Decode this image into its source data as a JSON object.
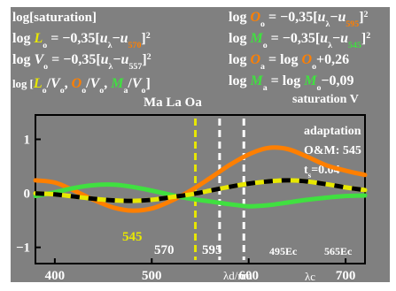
{
  "colors": {
    "panel": "#808080",
    "frame": "#000000",
    "text": "#ffffff",
    "orange": "#ff7f00",
    "green": "#40e040",
    "yellow": "#e8e800",
    "black": "#000000",
    "tick_text": "#ffffff",
    "left_strip": "#ffffff"
  },
  "header": {
    "left": [
      {
        "segments": [
          {
            "t": "log[saturation]",
            "c": "text"
          }
        ]
      },
      {
        "segments": [
          {
            "t": "log ",
            "c": "text"
          },
          {
            "t": "L",
            "c": "yellow",
            "i": true
          },
          {
            "t": "o",
            "c": "text",
            "sub": true
          },
          {
            "t": " = −0,35[",
            "c": "text"
          },
          {
            "t": "u",
            "c": "text",
            "i": true
          },
          {
            "t": "λ",
            "c": "text",
            "sub": true
          },
          {
            "t": "−",
            "c": "text"
          },
          {
            "t": "u",
            "c": "text",
            "i": true
          },
          {
            "t": "570",
            "c": "orange",
            "sub": true
          },
          {
            "t": "]",
            "c": "text"
          },
          {
            "t": "2",
            "c": "text",
            "sup": true
          }
        ]
      },
      {
        "segments": [
          {
            "t": "log ",
            "c": "text"
          },
          {
            "t": "V",
            "c": "text",
            "i": true
          },
          {
            "t": "o",
            "c": "text",
            "sub": true
          },
          {
            "t": " = −0,35[",
            "c": "text"
          },
          {
            "t": "u",
            "c": "text",
            "i": true
          },
          {
            "t": "λ",
            "c": "text",
            "sub": true
          },
          {
            "t": "−",
            "c": "text"
          },
          {
            "t": "u",
            "c": "text",
            "i": true
          },
          {
            "t": "557",
            "c": "text",
            "sub": true
          },
          {
            "t": "]",
            "c": "text"
          },
          {
            "t": "2",
            "c": "text",
            "sup": true
          }
        ]
      },
      {
        "segments": [
          {
            "t": "log [",
            "c": "text",
            "small": true
          },
          {
            "t": "L",
            "c": "yellow",
            "i": true
          },
          {
            "t": "o",
            "c": "text",
            "sub": true
          },
          {
            "t": "/",
            "c": "text"
          },
          {
            "t": "V",
            "c": "text",
            "i": true
          },
          {
            "t": "o",
            "c": "text",
            "sub": true
          },
          {
            "t": ", ",
            "c": "text"
          },
          {
            "t": "O",
            "c": "orange",
            "i": true
          },
          {
            "t": "o",
            "c": "text",
            "sub": true
          },
          {
            "t": "/",
            "c": "text"
          },
          {
            "t": "V",
            "c": "text",
            "i": true
          },
          {
            "t": "o",
            "c": "text",
            "sub": true
          },
          {
            "t": ", ",
            "c": "text"
          },
          {
            "t": "M",
            "c": "green",
            "i": true
          },
          {
            "t": "a",
            "c": "text",
            "sub": true
          },
          {
            "t": "/",
            "c": "text"
          },
          {
            "t": "V",
            "c": "text",
            "i": true
          },
          {
            "t": "o",
            "c": "text",
            "sub": true
          },
          {
            "t": "]",
            "c": "text"
          }
        ]
      }
    ],
    "right": [
      {
        "segments": [
          {
            "t": "log ",
            "c": "text"
          },
          {
            "t": "O",
            "c": "orange",
            "i": true
          },
          {
            "t": "o",
            "c": "text",
            "sub": true
          },
          {
            "t": " = −0,35[",
            "c": "text"
          },
          {
            "t": "u",
            "c": "text",
            "i": true
          },
          {
            "t": "λ",
            "c": "text",
            "sub": true
          },
          {
            "t": "−",
            "c": "text"
          },
          {
            "t": "u",
            "c": "text",
            "i": true
          },
          {
            "t": "595",
            "c": "orange",
            "sub": true
          },
          {
            "t": "]",
            "c": "text"
          },
          {
            "t": "2",
            "c": "text",
            "sup": true
          }
        ]
      },
      {
        "segments": [
          {
            "t": "log ",
            "c": "text"
          },
          {
            "t": "M",
            "c": "green",
            "i": true
          },
          {
            "t": "o",
            "c": "text",
            "sub": true
          },
          {
            "t": " = −0,35[",
            "c": "text"
          },
          {
            "t": "u",
            "c": "text",
            "i": true
          },
          {
            "t": "λ",
            "c": "text",
            "sub": true
          },
          {
            "t": "−",
            "c": "text"
          },
          {
            "t": "u",
            "c": "text",
            "i": true
          },
          {
            "t": "545",
            "c": "green",
            "sub": true
          },
          {
            "t": "]",
            "c": "text"
          },
          {
            "t": "2",
            "c": "text",
            "sup": true
          }
        ]
      },
      {
        "segments": [
          {
            "t": "log ",
            "c": "text"
          },
          {
            "t": "O",
            "c": "orange",
            "i": true
          },
          {
            "t": "a",
            "c": "text",
            "sub": true
          },
          {
            "t": " = log ",
            "c": "text"
          },
          {
            "t": "O",
            "c": "orange",
            "i": true
          },
          {
            "t": "o",
            "c": "text",
            "sub": true
          },
          {
            "t": "+0,26",
            "c": "text"
          }
        ]
      },
      {
        "segments": [
          {
            "t": "log ",
            "c": "text"
          },
          {
            "t": "M",
            "c": "green",
            "i": true
          },
          {
            "t": "a",
            "c": "text",
            "sub": true
          },
          {
            "t": " = log ",
            "c": "text"
          },
          {
            "t": "M",
            "c": "green",
            "i": true
          },
          {
            "t": "o",
            "c": "text",
            "sub": true
          },
          {
            "t": "−0,09",
            "c": "text"
          }
        ]
      }
    ],
    "saturation_label": "saturation V",
    "ma_la_oa": "Ma La Oa"
  },
  "annotations": {
    "adaptation": "adaptation",
    "om": "O&M: 545",
    "ts_prefix": "t",
    "ts_sub": "s",
    "ts_value": "=0.04"
  },
  "chart_data": {
    "type": "line",
    "title": "log[saturation]",
    "xlabel": "λd/nm",
    "xlabel2": "λc",
    "xlim": [
      380,
      720
    ],
    "ylim": [
      -1.3,
      1.45
    ],
    "x_ticks": [
      400,
      500,
      600,
      700
    ],
    "x_tick_labels": [
      "400",
      "500",
      "600",
      "700"
    ],
    "y_ticks": [
      1,
      0,
      -1
    ],
    "y_tick_labels": [
      "1",
      "0",
      "−1"
    ],
    "vlines": [
      {
        "x": 545,
        "label": "545",
        "color": "yellow"
      },
      {
        "x": 570,
        "label": "570",
        "color": "text"
      },
      {
        "x": 595,
        "label": "595",
        "color": "text"
      }
    ],
    "extra_labels": [
      "495Ec",
      "565Ec"
    ],
    "series": [
      {
        "color": "orange",
        "x": [
          380,
          400,
          420,
          440,
          460,
          480,
          500,
          520,
          540,
          560,
          580,
          600,
          620,
          640,
          660,
          680,
          700,
          720
        ],
        "y": [
          0.24,
          0.2,
          0.05,
          -0.12,
          -0.26,
          -0.32,
          -0.28,
          -0.14,
          0.05,
          0.28,
          0.52,
          0.72,
          0.84,
          0.82,
          0.68,
          0.52,
          0.42,
          0.34
        ]
      },
      {
        "color": "green",
        "x": [
          380,
          400,
          420,
          440,
          460,
          480,
          500,
          520,
          540,
          560,
          580,
          600,
          620,
          640,
          660,
          680,
          700,
          720
        ],
        "y": [
          -0.05,
          0.02,
          0.1,
          0.15,
          0.16,
          0.12,
          0.05,
          -0.03,
          -0.1,
          -0.15,
          -0.2,
          -0.24,
          -0.22,
          -0.17,
          -0.12,
          -0.08,
          -0.05,
          -0.04
        ]
      },
      {
        "color": "yellow",
        "x": [
          380,
          400,
          420,
          440,
          460,
          480,
          500,
          520,
          540,
          560,
          580,
          600,
          620,
          640,
          660,
          680,
          700,
          720
        ],
        "y": [
          0.0,
          -0.02,
          -0.06,
          -0.1,
          -0.13,
          -0.14,
          -0.12,
          -0.07,
          -0.02,
          0.05,
          0.12,
          0.18,
          0.22,
          0.24,
          0.22,
          0.17,
          0.11,
          0.06
        ],
        "dashed_black_overlay": true
      }
    ]
  }
}
